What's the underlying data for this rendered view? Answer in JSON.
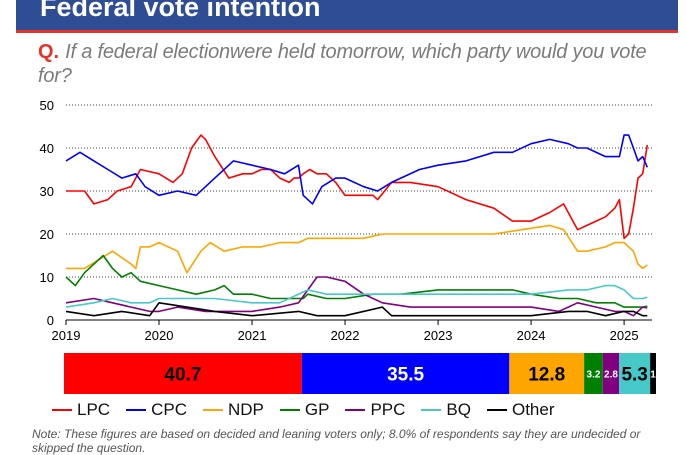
{
  "header": {
    "title": "Federal vote intention"
  },
  "question": {
    "prefix": "Q.",
    "text": "If a federal electionwere held tomorrow, which party would you vote for?"
  },
  "note": "Note: These figures are based on decided and leaning voters only; 8.0% of respondents say they are undecided or skipped the question.",
  "colors": {
    "LPC": "#ff0000",
    "CPC": "#0000ff",
    "NDP": "#ffa500",
    "GP": "#008000",
    "PPC": "#800080",
    "BQ": "#48c9c9",
    "Other": "#000000"
  },
  "chart_data": {
    "type": "line",
    "title": "",
    "xlabel": "",
    "ylabel": "",
    "xlim": [
      2019,
      2025.3
    ],
    "ylim": [
      0,
      50
    ],
    "grid": true,
    "legend_position": "bottom",
    "x_ticks": [
      "2019",
      "2020",
      "2021",
      "2022",
      "2023",
      "2024",
      "2025"
    ],
    "y_ticks": [
      "0",
      "10",
      "20",
      "30",
      "40",
      "50"
    ],
    "series": [
      {
        "name": "LPC",
        "x": [
          2019.0,
          2019.2,
          2019.3,
          2019.45,
          2019.55,
          2019.7,
          2019.8,
          2020.0,
          2020.15,
          2020.25,
          2020.35,
          2020.45,
          2020.5,
          2020.6,
          2020.75,
          2020.9,
          2021.0,
          2021.1,
          2021.2,
          2021.3,
          2021.4,
          2021.45,
          2021.5,
          2021.55,
          2021.62,
          2021.7,
          2021.8,
          2021.9,
          2022.0,
          2022.1,
          2022.3,
          2022.35,
          2022.5,
          2022.7,
          2023.0,
          2023.3,
          2023.6,
          2023.8,
          2024.0,
          2024.2,
          2024.35,
          2024.5,
          2024.6,
          2024.7,
          2024.8,
          2024.9,
          2024.95,
          2025.0,
          2025.05,
          2025.1,
          2025.15,
          2025.2,
          2025.25
        ],
        "values": [
          30,
          30,
          27,
          28,
          30,
          31,
          35,
          34,
          32,
          34,
          40,
          43,
          42,
          38,
          33,
          34,
          34,
          35,
          35,
          33,
          32,
          33,
          33,
          34,
          35,
          34,
          34,
          32,
          29,
          29,
          29,
          28,
          32,
          32,
          31,
          28,
          26,
          23,
          23,
          25,
          27,
          21,
          22,
          23,
          24,
          26,
          28,
          19,
          20,
          26,
          33,
          34,
          40.7
        ]
      },
      {
        "name": "CPC",
        "x": [
          2019.0,
          2019.15,
          2019.3,
          2019.45,
          2019.6,
          2019.75,
          2019.85,
          2020.0,
          2020.2,
          2020.4,
          2020.6,
          2020.8,
          2021.0,
          2021.2,
          2021.35,
          2021.5,
          2021.55,
          2021.65,
          2021.75,
          2021.9,
          2022.0,
          2022.2,
          2022.35,
          2022.5,
          2022.8,
          2023.0,
          2023.3,
          2023.6,
          2023.8,
          2024.0,
          2024.2,
          2024.4,
          2024.5,
          2024.6,
          2024.8,
          2024.95,
          2025.0,
          2025.05,
          2025.1,
          2025.15,
          2025.2,
          2025.25
        ],
        "values": [
          37,
          39,
          37,
          35,
          33,
          34,
          31,
          29,
          30,
          29,
          33,
          37,
          36,
          35,
          34,
          36,
          29,
          27,
          31,
          33,
          33,
          31,
          30,
          32,
          35,
          36,
          37,
          39,
          39,
          41,
          42,
          41,
          40,
          40,
          38,
          38,
          43,
          43,
          40,
          37,
          38,
          35.5
        ]
      },
      {
        "name": "NDP",
        "x": [
          2019.0,
          2019.2,
          2019.35,
          2019.5,
          2019.7,
          2019.75,
          2019.8,
          2019.9,
          2020.0,
          2020.2,
          2020.3,
          2020.45,
          2020.55,
          2020.7,
          2020.9,
          2021.1,
          2021.3,
          2021.5,
          2021.6,
          2021.75,
          2022.0,
          2022.2,
          2022.4,
          2022.7,
          2023.0,
          2023.3,
          2023.6,
          2023.9,
          2024.2,
          2024.35,
          2024.5,
          2024.6,
          2024.8,
          2024.9,
          2025.0,
          2025.05,
          2025.1,
          2025.15,
          2025.2,
          2025.25
        ],
        "values": [
          12,
          12,
          14,
          16,
          13,
          12,
          17,
          17,
          18,
          16,
          11,
          16,
          18,
          16,
          17,
          17,
          18,
          18,
          19,
          19,
          19,
          19,
          20,
          20,
          20,
          20,
          20,
          21,
          22,
          21,
          16,
          16,
          17,
          18,
          18,
          17,
          16,
          13,
          12,
          12.8
        ]
      },
      {
        "name": "GP",
        "x": [
          2019.0,
          2019.1,
          2019.2,
          2019.3,
          2019.4,
          2019.5,
          2019.6,
          2019.7,
          2019.8,
          2020.0,
          2020.2,
          2020.4,
          2020.6,
          2020.7,
          2020.8,
          2021.0,
          2021.2,
          2021.4,
          2021.55,
          2021.6,
          2021.8,
          2022.0,
          2022.3,
          2022.6,
          2023.0,
          2023.4,
          2023.8,
          2024.0,
          2024.3,
          2024.5,
          2024.7,
          2024.9,
          2025.0,
          2025.1,
          2025.2,
          2025.25
        ],
        "values": [
          10,
          8,
          11,
          13,
          15,
          12,
          10,
          11,
          9,
          8,
          7,
          6,
          7,
          8,
          6,
          6,
          5,
          5,
          5,
          6,
          5,
          5,
          6,
          6,
          7,
          7,
          7,
          6,
          5,
          5,
          4,
          4,
          3,
          3,
          3,
          3.2
        ]
      },
      {
        "name": "PPC",
        "x": [
          2019.0,
          2019.3,
          2019.5,
          2019.7,
          2019.9,
          2020.0,
          2020.2,
          2020.5,
          2020.8,
          2021.0,
          2021.3,
          2021.5,
          2021.6,
          2021.7,
          2021.8,
          2022.0,
          2022.2,
          2022.4,
          2022.7,
          2023.0,
          2023.5,
          2024.0,
          2024.3,
          2024.5,
          2024.7,
          2024.9,
          2025.0,
          2025.1,
          2025.2,
          2025.25
        ],
        "values": [
          4,
          5,
          4,
          3,
          2,
          2,
          3,
          2,
          2,
          2,
          3,
          4,
          7,
          10,
          10,
          9,
          6,
          4,
          3,
          3,
          3,
          3,
          2,
          4,
          3,
          2,
          2,
          1,
          3,
          2.8
        ]
      },
      {
        "name": "BQ",
        "x": [
          2019.0,
          2019.3,
          2019.5,
          2019.7,
          2019.9,
          2020.0,
          2020.3,
          2020.6,
          2021.0,
          2021.3,
          2021.6,
          2021.8,
          2022.0,
          2022.3,
          2022.6,
          2023.0,
          2023.5,
          2024.0,
          2024.4,
          2024.6,
          2024.8,
          2024.9,
          2025.0,
          2025.1,
          2025.2,
          2025.25
        ],
        "values": [
          3,
          4,
          5,
          4,
          4,
          5,
          5,
          5,
          4,
          4,
          7,
          6,
          6,
          6,
          6,
          6,
          6,
          6,
          7,
          7,
          8,
          8,
          7,
          5,
          5,
          5.3
        ]
      },
      {
        "name": "Other",
        "x": [
          2019.0,
          2019.3,
          2019.6,
          2019.9,
          2020.0,
          2020.3,
          2020.6,
          2021.0,
          2021.5,
          2021.7,
          2022.0,
          2022.4,
          2022.5,
          2022.8,
          2023.2,
          2023.6,
          2024.0,
          2024.4,
          2024.6,
          2024.8,
          2025.0,
          2025.1,
          2025.2,
          2025.25
        ],
        "values": [
          2,
          1,
          2,
          1,
          4,
          3,
          2,
          1,
          2,
          1,
          1,
          3,
          1,
          1,
          1,
          1,
          1,
          2,
          2,
          1,
          2,
          2,
          1,
          1
        ]
      }
    ],
    "current_bar": [
      {
        "name": "LPC",
        "value": 40.7,
        "label": "40.7"
      },
      {
        "name": "CPC",
        "value": 35.5,
        "label": "35.5"
      },
      {
        "name": "NDP",
        "value": 12.8,
        "label": "12.8"
      },
      {
        "name": "GP",
        "value": 3.2,
        "label": "3.2"
      },
      {
        "name": "PPC",
        "value": 2.8,
        "label": "2.8"
      },
      {
        "name": "BQ",
        "value": 5.3,
        "label": "5.3"
      },
      {
        "name": "Other",
        "value": 1.0,
        "label": "1"
      }
    ]
  }
}
